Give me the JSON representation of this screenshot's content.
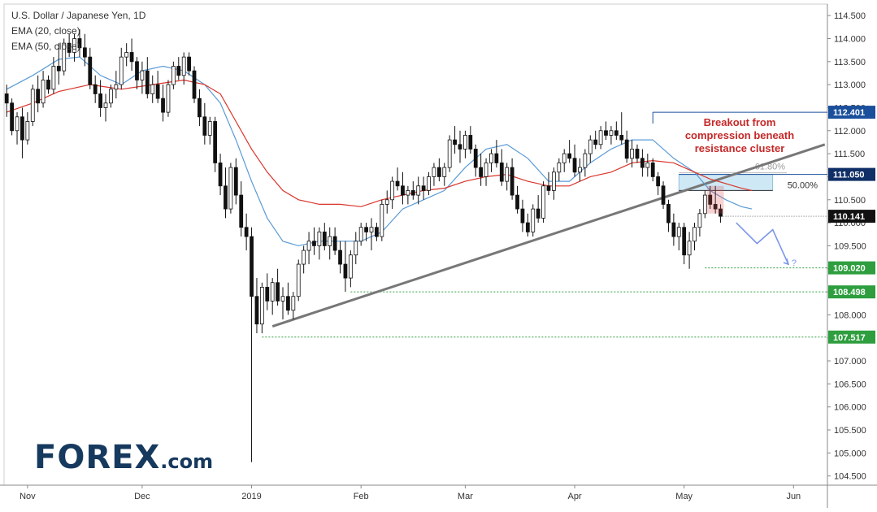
{
  "legend": {
    "title": "U.S. Dollar / Japanese Yen, 1D",
    "ema20": "EMA (20, close)",
    "ema50": "EMA (50, close)"
  },
  "logo": {
    "brand": "FOREX",
    "suffix": ".com"
  },
  "annotation": {
    "lines": [
      "Breakout from",
      "compression beneath",
      "resistance cluster"
    ],
    "fib_618": "61.80%",
    "fib_50": "50.00%",
    "question": "?"
  },
  "colors": {
    "up_candle": "#ffffff",
    "down_candle": "#111111",
    "ema20": "#5b9bd5",
    "ema50": "#d9342b",
    "trendline": "#777777",
    "level_green": "#2e9e3f",
    "level_blue": "#1a4f9c",
    "annotation_red": "#c62828",
    "fib_zone": "#cfe8f5",
    "projection": "#7b96e8"
  },
  "chart_data": {
    "type": "candlestick",
    "title": "U.S. Dollar / Japanese Yen, 1D",
    "ylim": [
      104.3,
      114.75
    ],
    "y_ticks": [
      "104.500",
      "105.000",
      "105.500",
      "106.000",
      "106.500",
      "107.000",
      "107.500",
      "108.000",
      "108.500",
      "109.000",
      "109.500",
      "110.000",
      "110.500",
      "111.000",
      "111.500",
      "112.000",
      "112.500",
      "113.000",
      "113.500",
      "114.000",
      "114.500"
    ],
    "x_labels": [
      {
        "label": "Nov",
        "index": 4
      },
      {
        "label": "Dec",
        "index": 26
      },
      {
        "label": "2019",
        "index": 47
      },
      {
        "label": "Feb",
        "index": 68
      },
      {
        "label": "Mar",
        "index": 88
      },
      {
        "label": "Apr",
        "index": 109
      },
      {
        "label": "May",
        "index": 130
      },
      {
        "label": "Jun",
        "index": 151
      }
    ],
    "x_count": 158,
    "series": [
      {
        "name": "EMA (20, close)",
        "values": [
          [
            0,
            112.9
          ],
          [
            5,
            113.2
          ],
          [
            10,
            113.55
          ],
          [
            14,
            113.6
          ],
          [
            18,
            113.2
          ],
          [
            22,
            113.0
          ],
          [
            26,
            113.3
          ],
          [
            30,
            113.4
          ],
          [
            34,
            113.3
          ],
          [
            38,
            113.0
          ],
          [
            41,
            112.6
          ],
          [
            44,
            111.8
          ],
          [
            47,
            110.9
          ],
          [
            50,
            110.1
          ],
          [
            53,
            109.6
          ],
          [
            56,
            109.5
          ],
          [
            60,
            109.6
          ],
          [
            64,
            109.6
          ],
          [
            68,
            109.6
          ],
          [
            72,
            109.8
          ],
          [
            76,
            110.3
          ],
          [
            80,
            110.5
          ],
          [
            84,
            110.7
          ],
          [
            88,
            111.2
          ],
          [
            92,
            111.6
          ],
          [
            96,
            111.7
          ],
          [
            100,
            111.4
          ],
          [
            104,
            110.9
          ],
          [
            108,
            110.9
          ],
          [
            112,
            111.3
          ],
          [
            116,
            111.6
          ],
          [
            120,
            111.8
          ],
          [
            124,
            111.8
          ],
          [
            128,
            111.4
          ],
          [
            132,
            111.1
          ],
          [
            135,
            110.7
          ],
          [
            138,
            110.5
          ],
          [
            141,
            110.35
          ],
          [
            143,
            110.3
          ]
        ]
      },
      {
        "name": "EMA (50, close)",
        "values": [
          [
            0,
            112.4
          ],
          [
            5,
            112.6
          ],
          [
            10,
            112.85
          ],
          [
            16,
            113.0
          ],
          [
            22,
            112.9
          ],
          [
            28,
            113.0
          ],
          [
            34,
            113.1
          ],
          [
            38,
            113.0
          ],
          [
            41,
            112.8
          ],
          [
            44,
            112.2
          ],
          [
            47,
            111.6
          ],
          [
            50,
            111.1
          ],
          [
            53,
            110.7
          ],
          [
            56,
            110.5
          ],
          [
            60,
            110.4
          ],
          [
            64,
            110.4
          ],
          [
            68,
            110.35
          ],
          [
            72,
            110.5
          ],
          [
            76,
            110.6
          ],
          [
            80,
            110.7
          ],
          [
            84,
            110.75
          ],
          [
            88,
            110.9
          ],
          [
            92,
            111.0
          ],
          [
            96,
            111.05
          ],
          [
            100,
            110.9
          ],
          [
            104,
            110.8
          ],
          [
            108,
            110.8
          ],
          [
            112,
            111.0
          ],
          [
            116,
            111.1
          ],
          [
            120,
            111.3
          ],
          [
            124,
            111.35
          ],
          [
            128,
            111.3
          ],
          [
            132,
            111.1
          ],
          [
            135,
            110.95
          ],
          [
            138,
            110.85
          ],
          [
            141,
            110.75
          ],
          [
            143,
            110.7
          ]
        ]
      }
    ],
    "candles": [
      [
        112.8,
        113.0,
        112.3,
        112.6
      ],
      [
        112.6,
        112.7,
        111.9,
        112.0
      ],
      [
        112.0,
        112.4,
        111.7,
        112.3
      ],
      [
        112.3,
        112.5,
        111.4,
        111.8
      ],
      [
        111.8,
        112.4,
        111.7,
        112.2
      ],
      [
        112.2,
        113.0,
        112.1,
        112.9
      ],
      [
        112.9,
        113.2,
        112.4,
        112.6
      ],
      [
        112.6,
        113.3,
        112.5,
        113.1
      ],
      [
        113.1,
        113.2,
        112.8,
        112.9
      ],
      [
        112.9,
        113.6,
        112.8,
        113.4
      ],
      [
        113.4,
        113.9,
        113.0,
        113.3
      ],
      [
        113.3,
        114.0,
        113.2,
        113.9
      ],
      [
        113.9,
        114.1,
        113.6,
        113.7
      ],
      [
        113.7,
        114.1,
        113.5,
        114.0
      ],
      [
        114.0,
        114.2,
        113.6,
        113.8
      ],
      [
        113.8,
        114.1,
        113.4,
        113.6
      ],
      [
        113.6,
        113.8,
        112.9,
        113.0
      ],
      [
        113.0,
        113.2,
        112.6,
        112.8
      ],
      [
        112.8,
        113.1,
        112.3,
        112.5
      ],
      [
        112.5,
        112.8,
        112.2,
        112.6
      ],
      [
        112.6,
        113.0,
        112.5,
        112.9
      ],
      [
        112.9,
        113.3,
        112.7,
        113.0
      ],
      [
        113.0,
        113.8,
        112.9,
        113.6
      ],
      [
        113.6,
        113.9,
        113.4,
        113.7
      ],
      [
        113.7,
        114.0,
        113.3,
        113.5
      ],
      [
        113.5,
        113.6,
        112.9,
        113.1
      ],
      [
        113.1,
        113.5,
        112.8,
        113.3
      ],
      [
        113.3,
        113.6,
        112.7,
        112.8
      ],
      [
        112.8,
        113.2,
        112.6,
        113.0
      ],
      [
        113.0,
        113.3,
        112.6,
        112.7
      ],
      [
        112.7,
        113.0,
        112.2,
        112.4
      ],
      [
        112.4,
        113.1,
        112.3,
        113.0
      ],
      [
        113.0,
        113.5,
        112.9,
        113.4
      ],
      [
        113.4,
        113.6,
        113.1,
        113.2
      ],
      [
        113.2,
        113.7,
        113.0,
        113.6
      ],
      [
        113.6,
        113.7,
        113.2,
        113.3
      ],
      [
        113.3,
        113.4,
        112.6,
        112.7
      ],
      [
        112.7,
        112.9,
        112.1,
        112.3
      ],
      [
        112.3,
        112.6,
        111.7,
        111.9
      ],
      [
        111.9,
        112.3,
        111.7,
        112.2
      ],
      [
        112.2,
        112.3,
        111.1,
        111.3
      ],
      [
        111.3,
        111.5,
        110.6,
        110.8
      ],
      [
        110.8,
        111.2,
        110.1,
        110.3
      ],
      [
        110.3,
        111.3,
        110.2,
        111.2
      ],
      [
        111.2,
        111.4,
        110.4,
        110.6
      ],
      [
        110.6,
        110.9,
        109.7,
        109.9
      ],
      [
        109.9,
        110.2,
        109.4,
        109.7
      ],
      [
        109.7,
        109.9,
        104.8,
        108.4
      ],
      [
        108.4,
        108.8,
        107.6,
        107.8
      ],
      [
        107.8,
        108.7,
        107.6,
        108.6
      ],
      [
        108.6,
        108.9,
        108.1,
        108.3
      ],
      [
        108.3,
        108.8,
        108.0,
        108.7
      ],
      [
        108.7,
        109.0,
        108.2,
        108.3
      ],
      [
        108.3,
        108.6,
        107.9,
        108.4
      ],
      [
        108.4,
        108.7,
        108.0,
        108.1
      ],
      [
        108.1,
        108.5,
        107.9,
        108.4
      ],
      [
        108.4,
        109.2,
        108.3,
        109.1
      ],
      [
        109.1,
        109.5,
        108.9,
        109.4
      ],
      [
        109.4,
        109.8,
        109.1,
        109.6
      ],
      [
        109.6,
        109.9,
        109.3,
        109.5
      ],
      [
        109.5,
        109.9,
        109.2,
        109.8
      ],
      [
        109.8,
        110.0,
        109.4,
        109.5
      ],
      [
        109.5,
        109.9,
        109.2,
        109.7
      ],
      [
        109.7,
        109.9,
        109.3,
        109.4
      ],
      [
        109.4,
        109.6,
        108.9,
        109.1
      ],
      [
        109.1,
        109.6,
        108.5,
        108.8
      ],
      [
        108.8,
        109.4,
        108.6,
        109.3
      ],
      [
        109.3,
        109.8,
        109.1,
        109.6
      ],
      [
        109.6,
        110.0,
        109.5,
        109.9
      ],
      [
        109.9,
        110.0,
        109.6,
        109.8
      ],
      [
        109.8,
        110.1,
        109.4,
        109.9
      ],
      [
        109.9,
        110.0,
        109.6,
        109.7
      ],
      [
        109.7,
        110.5,
        109.6,
        110.4
      ],
      [
        110.4,
        110.7,
        110.2,
        110.5
      ],
      [
        110.5,
        111.0,
        110.3,
        110.9
      ],
      [
        110.9,
        111.2,
        110.7,
        110.8
      ],
      [
        110.8,
        111.1,
        110.4,
        110.6
      ],
      [
        110.6,
        110.8,
        110.4,
        110.7
      ],
      [
        110.7,
        110.9,
        110.5,
        110.6
      ],
      [
        110.6,
        111.0,
        110.4,
        110.8
      ],
      [
        110.8,
        111.0,
        110.5,
        110.7
      ],
      [
        110.7,
        111.1,
        110.6,
        111.0
      ],
      [
        111.0,
        111.3,
        110.8,
        111.2
      ],
      [
        111.2,
        111.4,
        110.9,
        111.0
      ],
      [
        111.0,
        111.3,
        110.8,
        111.2
      ],
      [
        111.2,
        111.9,
        111.1,
        111.8
      ],
      [
        111.8,
        112.1,
        111.5,
        111.7
      ],
      [
        111.7,
        112.0,
        111.3,
        111.6
      ],
      [
        111.6,
        112.0,
        111.4,
        111.9
      ],
      [
        111.9,
        112.1,
        111.5,
        111.6
      ],
      [
        111.6,
        111.7,
        111.0,
        111.2
      ],
      [
        111.2,
        111.5,
        110.8,
        111.0
      ],
      [
        111.0,
        111.4,
        110.8,
        111.3
      ],
      [
        111.3,
        111.6,
        111.1,
        111.5
      ],
      [
        111.5,
        111.8,
        111.2,
        111.3
      ],
      [
        111.3,
        111.6,
        110.8,
        110.9
      ],
      [
        110.9,
        111.3,
        110.7,
        111.2
      ],
      [
        111.2,
        111.4,
        110.5,
        110.6
      ],
      [
        110.6,
        110.8,
        110.2,
        110.3
      ],
      [
        110.3,
        110.5,
        109.8,
        110.0
      ],
      [
        110.0,
        110.2,
        109.7,
        109.8
      ],
      [
        109.8,
        110.4,
        109.7,
        110.3
      ],
      [
        110.3,
        110.6,
        110.0,
        110.1
      ],
      [
        110.1,
        110.9,
        110.0,
        110.8
      ],
      [
        110.8,
        111.1,
        110.6,
        110.7
      ],
      [
        110.7,
        111.2,
        110.5,
        111.1
      ],
      [
        111.1,
        111.4,
        110.9,
        111.3
      ],
      [
        111.3,
        111.6,
        111.1,
        111.5
      ],
      [
        111.5,
        111.8,
        111.3,
        111.4
      ],
      [
        111.4,
        111.7,
        111.0,
        111.1
      ],
      [
        111.1,
        111.4,
        110.9,
        111.2
      ],
      [
        111.2,
        111.6,
        111.0,
        111.5
      ],
      [
        111.5,
        111.9,
        111.3,
        111.8
      ],
      [
        111.8,
        112.0,
        111.6,
        111.7
      ],
      [
        111.7,
        112.1,
        111.6,
        112.0
      ],
      [
        112.0,
        112.2,
        111.8,
        111.9
      ],
      [
        111.9,
        112.1,
        111.7,
        112.0
      ],
      [
        112.0,
        112.2,
        111.8,
        111.9
      ],
      [
        111.9,
        112.4,
        111.7,
        111.8
      ],
      [
        111.8,
        112.0,
        111.3,
        111.4
      ],
      [
        111.4,
        111.8,
        111.2,
        111.6
      ],
      [
        111.6,
        111.7,
        111.3,
        111.4
      ],
      [
        111.4,
        111.6,
        111.0,
        111.2
      ],
      [
        111.2,
        111.5,
        111.0,
        111.3
      ],
      [
        111.3,
        111.4,
        110.9,
        111.0
      ],
      [
        111.0,
        111.1,
        110.6,
        110.8
      ],
      [
        110.8,
        110.9,
        110.3,
        110.4
      ],
      [
        110.4,
        110.5,
        109.8,
        110.0
      ],
      [
        110.0,
        110.2,
        109.5,
        109.7
      ],
      [
        109.7,
        110.0,
        109.4,
        109.9
      ],
      [
        109.9,
        110.0,
        109.1,
        109.3
      ],
      [
        109.3,
        109.8,
        109.0,
        109.6
      ],
      [
        109.6,
        110.0,
        109.4,
        109.9
      ],
      [
        109.9,
        110.3,
        109.7,
        110.2
      ],
      [
        110.2,
        110.7,
        110.1,
        110.6
      ],
      [
        110.6,
        110.8,
        110.3,
        110.4
      ],
      [
        110.4,
        110.8,
        110.2,
        110.3
      ],
      [
        110.3,
        110.4,
        110.0,
        110.14
      ]
    ],
    "levels": [
      {
        "label": "112.401",
        "value": 112.401,
        "kind": "blue",
        "from": 124
      },
      {
        "label": "111.050",
        "value": 111.05,
        "kind": "blue_fill",
        "from": 129
      },
      {
        "label": "109.020",
        "value": 109.02,
        "kind": "green",
        "from": 134
      },
      {
        "label": "108.498",
        "value": 108.498,
        "kind": "green",
        "from": 66
      },
      {
        "label": "107.517",
        "value": 107.517,
        "kind": "green",
        "from": 49
      }
    ],
    "current_price": {
      "label": "110.141",
      "value": 110.141
    },
    "trendline": [
      [
        51,
        107.75
      ],
      [
        157,
        111.7
      ]
    ],
    "fib_zone": {
      "from": 129,
      "to": 147,
      "top": 111.05,
      "bottom": 110.7
    },
    "projection": [
      [
        140,
        110.0
      ],
      [
        144,
        109.55
      ],
      [
        147,
        109.85
      ],
      [
        150,
        109.1
      ]
    ]
  }
}
